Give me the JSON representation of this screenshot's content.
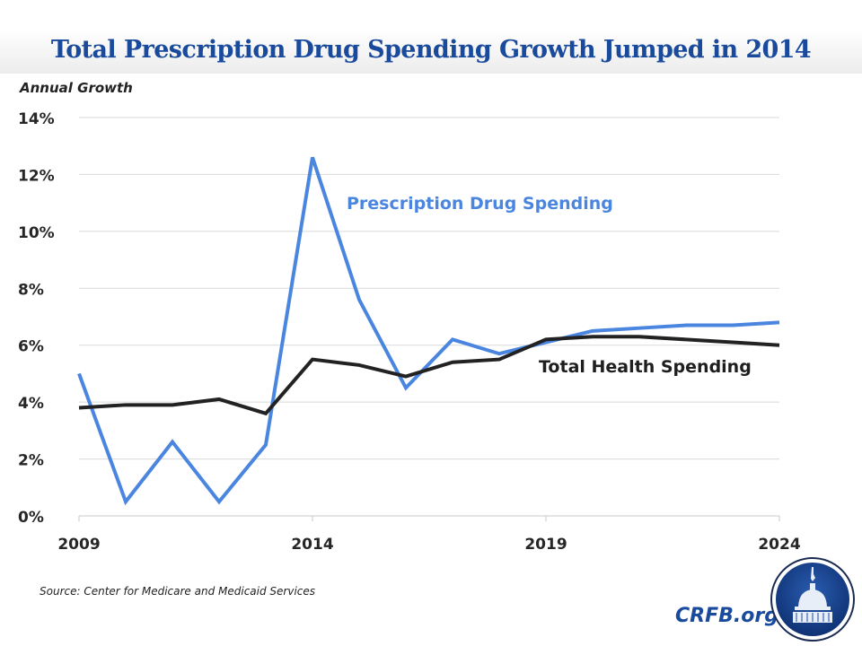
{
  "title": "Total Prescription Drug Spending Growth Jumped in 2014",
  "source": "Source: Center for Medicare and Medicaid Services",
  "brand": {
    "text": "CRFB.org",
    "logo": "capitol-dome-seal",
    "color": "#1a4a9c"
  },
  "chart_data": {
    "type": "line",
    "title": "Total Prescription Drug Spending Growth Jumped in 2014",
    "ylabel": "Annual Growth",
    "xlabel": "",
    "x": [
      2009,
      2010,
      2011,
      2012,
      2013,
      2014,
      2015,
      2016,
      2017,
      2018,
      2019,
      2020,
      2021,
      2022,
      2023,
      2024
    ],
    "xticks": [
      "2009",
      "2014",
      "2019",
      "2024"
    ],
    "yticks": [
      "0%",
      "2%",
      "4%",
      "6%",
      "8%",
      "10%",
      "12%",
      "14%"
    ],
    "ylim": [
      0,
      14
    ],
    "grid": true,
    "series": [
      {
        "name": "Prescription Drug Spending",
        "color": "#4a86e0",
        "values": [
          5.0,
          0.5,
          2.6,
          0.5,
          2.5,
          12.6,
          7.6,
          4.5,
          6.2,
          5.7,
          6.1,
          6.5,
          6.6,
          6.7,
          6.7,
          6.8
        ]
      },
      {
        "name": "Total Health Spending",
        "color": "#222222",
        "values": [
          3.8,
          3.9,
          3.9,
          4.1,
          3.6,
          5.5,
          5.3,
          4.9,
          5.4,
          5.5,
          6.2,
          6.3,
          6.3,
          6.2,
          6.1,
          6.0
        ]
      }
    ]
  }
}
